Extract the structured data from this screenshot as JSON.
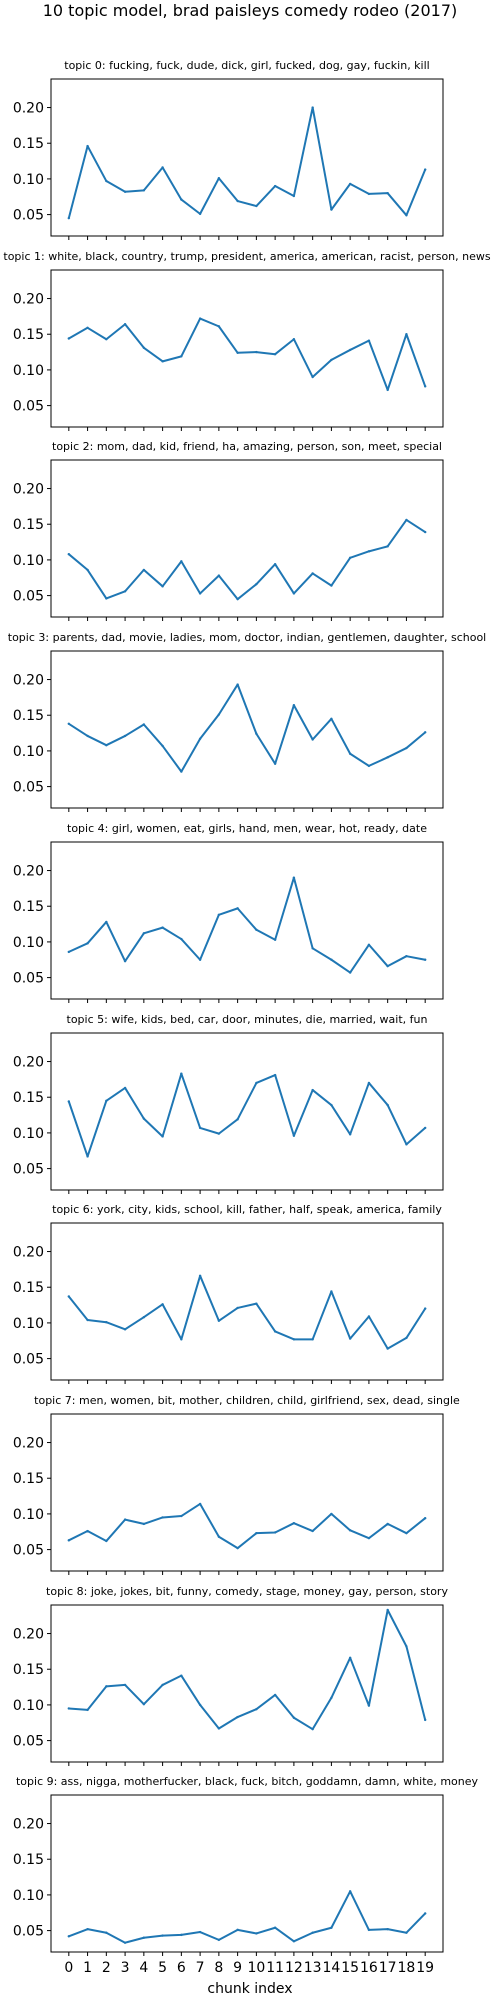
{
  "title": "10 topic model, brad paisleys comedy rodeo (2017)",
  "xlabel": "chunk index",
  "line_color": "#1f77b4",
  "chart_data": [
    {
      "type": "line",
      "title": "topic 0: fucking, fuck, dude, dick, girl, fucked, dog, gay, fuckin, kill",
      "x": [
        0,
        1,
        2,
        3,
        4,
        5,
        6,
        7,
        8,
        9,
        10,
        11,
        12,
        13,
        14,
        15,
        16,
        17,
        18,
        19
      ],
      "values": [
        0.045,
        0.146,
        0.097,
        0.082,
        0.084,
        0.116,
        0.071,
        0.051,
        0.101,
        0.069,
        0.062,
        0.09,
        0.076,
        0.2,
        0.057,
        0.093,
        0.079,
        0.08,
        0.049,
        0.113
      ],
      "ylim": [
        0.02,
        0.24
      ],
      "yticks": [
        "0.05",
        "0.10",
        "0.15",
        "0.20"
      ]
    },
    {
      "type": "line",
      "title": "topic 1: white, black, country, trump, president, america, american, racist, person, news",
      "x": [
        0,
        1,
        2,
        3,
        4,
        5,
        6,
        7,
        8,
        9,
        10,
        11,
        12,
        13,
        14,
        15,
        16,
        17,
        18,
        19
      ],
      "values": [
        0.144,
        0.159,
        0.143,
        0.164,
        0.131,
        0.112,
        0.119,
        0.172,
        0.161,
        0.124,
        0.125,
        0.122,
        0.143,
        0.09,
        0.114,
        0.128,
        0.141,
        0.072,
        0.15,
        0.077
      ],
      "ylim": [
        0.02,
        0.24
      ],
      "yticks": [
        "0.05",
        "0.10",
        "0.15",
        "0.20"
      ]
    },
    {
      "type": "line",
      "title": "topic 2: mom, dad, kid, friend, ha, amazing, person, son, meet, special",
      "x": [
        0,
        1,
        2,
        3,
        4,
        5,
        6,
        7,
        8,
        9,
        10,
        11,
        12,
        13,
        14,
        15,
        16,
        17,
        18,
        19
      ],
      "values": [
        0.108,
        0.086,
        0.046,
        0.056,
        0.086,
        0.063,
        0.098,
        0.053,
        0.078,
        0.045,
        0.066,
        0.094,
        0.053,
        0.081,
        0.064,
        0.103,
        0.112,
        0.119,
        0.156,
        0.139
      ],
      "ylim": [
        0.02,
        0.24
      ],
      "yticks": [
        "0.05",
        "0.10",
        "0.15",
        "0.20"
      ]
    },
    {
      "type": "line",
      "title": "topic 3: parents, dad, movie, ladies, mom, doctor, indian, gentlemen, daughter, school",
      "x": [
        0,
        1,
        2,
        3,
        4,
        5,
        6,
        7,
        8,
        9,
        10,
        11,
        12,
        13,
        14,
        15,
        16,
        17,
        18,
        19
      ],
      "values": [
        0.138,
        0.121,
        0.108,
        0.121,
        0.137,
        0.107,
        0.071,
        0.117,
        0.151,
        0.193,
        0.124,
        0.082,
        0.164,
        0.116,
        0.145,
        0.096,
        0.079,
        0.091,
        0.104,
        0.126
      ],
      "ylim": [
        0.02,
        0.24
      ],
      "yticks": [
        "0.05",
        "0.10",
        "0.15",
        "0.20"
      ]
    },
    {
      "type": "line",
      "title": "topic 4: girl, women, eat, girls, hand, men, wear, hot, ready, date",
      "x": [
        0,
        1,
        2,
        3,
        4,
        5,
        6,
        7,
        8,
        9,
        10,
        11,
        12,
        13,
        14,
        15,
        16,
        17,
        18,
        19
      ],
      "values": [
        0.086,
        0.098,
        0.128,
        0.073,
        0.112,
        0.12,
        0.104,
        0.075,
        0.138,
        0.147,
        0.117,
        0.103,
        0.19,
        0.091,
        0.075,
        0.057,
        0.096,
        0.066,
        0.08,
        0.075
      ],
      "ylim": [
        0.02,
        0.24
      ],
      "yticks": [
        "0.05",
        "0.10",
        "0.15",
        "0.20"
      ]
    },
    {
      "type": "line",
      "title": "topic 5: wife, kids, bed, car, door, minutes, die, married, wait, fun",
      "x": [
        0,
        1,
        2,
        3,
        4,
        5,
        6,
        7,
        8,
        9,
        10,
        11,
        12,
        13,
        14,
        15,
        16,
        17,
        18,
        19
      ],
      "values": [
        0.144,
        0.067,
        0.145,
        0.163,
        0.12,
        0.095,
        0.183,
        0.107,
        0.099,
        0.119,
        0.17,
        0.181,
        0.096,
        0.16,
        0.139,
        0.098,
        0.17,
        0.139,
        0.084,
        0.107
      ],
      "ylim": [
        0.02,
        0.24
      ],
      "yticks": [
        "0.05",
        "0.10",
        "0.15",
        "0.20"
      ]
    },
    {
      "type": "line",
      "title": "topic 6: york, city, kids, school, kill, father, half, speak, america, family",
      "x": [
        0,
        1,
        2,
        3,
        4,
        5,
        6,
        7,
        8,
        9,
        10,
        11,
        12,
        13,
        14,
        15,
        16,
        17,
        18,
        19
      ],
      "values": [
        0.137,
        0.104,
        0.101,
        0.091,
        0.108,
        0.126,
        0.077,
        0.166,
        0.103,
        0.121,
        0.127,
        0.088,
        0.077,
        0.077,
        0.144,
        0.078,
        0.109,
        0.064,
        0.079,
        0.12
      ],
      "ylim": [
        0.02,
        0.24
      ],
      "yticks": [
        "0.05",
        "0.10",
        "0.15",
        "0.20"
      ]
    },
    {
      "type": "line",
      "title": "topic 7: men, women, bit, mother, children, child, girlfriend, sex, dead, single",
      "x": [
        0,
        1,
        2,
        3,
        4,
        5,
        6,
        7,
        8,
        9,
        10,
        11,
        12,
        13,
        14,
        15,
        16,
        17,
        18,
        19
      ],
      "values": [
        0.063,
        0.076,
        0.062,
        0.092,
        0.086,
        0.095,
        0.097,
        0.114,
        0.068,
        0.052,
        0.073,
        0.074,
        0.087,
        0.076,
        0.1,
        0.077,
        0.066,
        0.086,
        0.073,
        0.094
      ],
      "ylim": [
        0.02,
        0.24
      ],
      "yticks": [
        "0.05",
        "0.10",
        "0.15",
        "0.20"
      ]
    },
    {
      "type": "line",
      "title": "topic 8: joke, jokes, bit, funny, comedy, stage, money, gay, person, story",
      "x": [
        0,
        1,
        2,
        3,
        4,
        5,
        6,
        7,
        8,
        9,
        10,
        11,
        12,
        13,
        14,
        15,
        16,
        17,
        18,
        19
      ],
      "values": [
        0.095,
        0.093,
        0.126,
        0.128,
        0.101,
        0.128,
        0.141,
        0.1,
        0.067,
        0.083,
        0.094,
        0.114,
        0.082,
        0.066,
        0.11,
        0.166,
        0.099,
        0.233,
        0.182,
        0.079
      ],
      "ylim": [
        0.02,
        0.24
      ],
      "yticks": [
        "0.05",
        "0.10",
        "0.15",
        "0.20"
      ]
    },
    {
      "type": "line",
      "title": "topic 9: ass, nigga, motherfucker, black, fuck, bitch, goddamn, damn, white, money",
      "x": [
        0,
        1,
        2,
        3,
        4,
        5,
        6,
        7,
        8,
        9,
        10,
        11,
        12,
        13,
        14,
        15,
        16,
        17,
        18,
        19
      ],
      "values": [
        0.042,
        0.052,
        0.047,
        0.033,
        0.04,
        0.043,
        0.044,
        0.048,
        0.037,
        0.051,
        0.046,
        0.054,
        0.035,
        0.047,
        0.054,
        0.105,
        0.051,
        0.052,
        0.047,
        0.074
      ],
      "ylim": [
        0.02,
        0.24
      ],
      "yticks": [
        "0.05",
        "0.10",
        "0.15",
        "0.20"
      ]
    }
  ]
}
